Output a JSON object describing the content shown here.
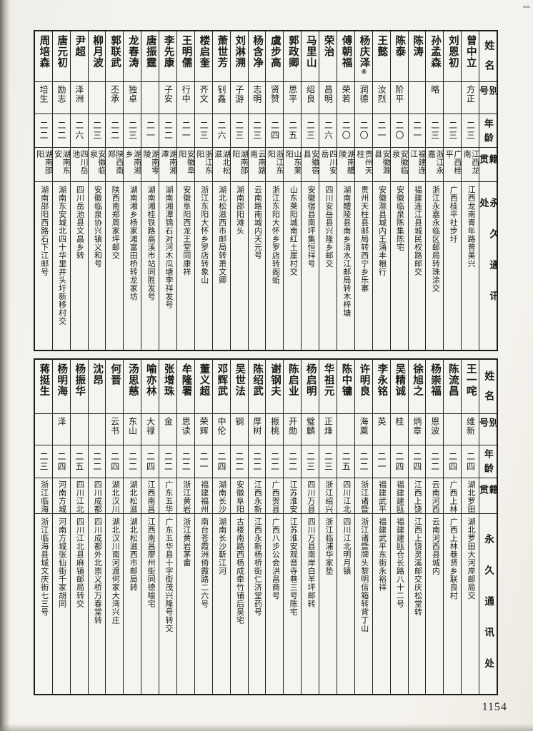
{
  "page": {
    "number": "1154"
  },
  "row_headers": {
    "name": "姓名",
    "alias": "别号",
    "age": "年龄",
    "native_place": "籍贯",
    "address": "永久通讯处"
  },
  "tables": [
    {
      "id": "top",
      "people": [
        {
          "name": "曾中立",
          "alias": "方正",
          "age": "二三",
          "native_place": "江西龙南",
          "address": "江西龙南青年路曾美兴"
        },
        {
          "name": "刘恩初",
          "alias": "",
          "age": "二三",
          "native_place": "广西桂平",
          "address": "广西桂平社步圩"
        },
        {
          "name": "孙孟森",
          "alias": "略",
          "age": "二三",
          "native_place": "浙江永嘉",
          "address": "浙江永嘉永临区邮局转珠涂交"
        },
        {
          "name": "陈涛",
          "alias": "",
          "age": "二一",
          "native_place": "福建连江",
          "address": "福建连江县城民权路邮交"
        },
        {
          "name": "陈泰",
          "alias": "阶平",
          "age": "二〇",
          "native_place": "安徽临泉",
          "address": "安徽临泉陈集陈宅"
        },
        {
          "name": "王懿",
          "alias": "汝烈",
          "age": "二一",
          "native_place": "安徽滁县",
          "address": "安徽滁县城内王涌丰粮行"
        },
        {
          "name": "杨庆泽",
          "note": "④",
          "alias": "润德",
          "age": "二〇",
          "native_place": "贵州天柱",
          "address": "贵州天柱县邮局转西宁乡乐寨"
        },
        {
          "name": "傅朝福",
          "alias": "荣若",
          "age": "二〇",
          "native_place": "湖南醴陵",
          "address": "湖南醴陵县南乡清水江邮局转木梓塘"
        },
        {
          "name": "荣治",
          "alias": "昌明",
          "age": "二六",
          "native_place": "四川安岳",
          "address": "四川安岳县兴隆乡邮交"
        },
        {
          "name": "马里山",
          "alias": "绍良",
          "age": "二三",
          "native_place": "安徽宿县",
          "address": "安徽宿县南坪集恒祥号"
        },
        {
          "name": "郭政卿",
          "alias": "思平",
          "age": "二五",
          "native_place": "山东莱阳",
          "address": "山东莱阳城南红土崖村交"
        },
        {
          "name": "虞步高",
          "alias": "贤赞",
          "age": "二四",
          "native_place": "浙江东阳",
          "address": "浙江东阳大怀乡罗店转阁蚯"
        },
        {
          "name": "杨含净",
          "alias": "志明",
          "age": "二三",
          "native_place": "云南路南",
          "address": "云南路南城内天元号"
        },
        {
          "name": "刘淋溯",
          "alias": "子游",
          "age": "二三",
          "native_place": "湖南邵阳",
          "address": "湖南邵阳滩头"
        },
        {
          "name": "萧世芳",
          "alias": "钊鑫",
          "age": "二六",
          "native_place": "湖北松滋",
          "address": "湖北松滋西市邮局转萧文卿"
        },
        {
          "name": "楼启奎",
          "alias": "齐文",
          "age": "二三",
          "native_place": "浙江东阳",
          "address": "浙江东阳大怀乡罗店转象山"
        },
        {
          "name": "王明儒",
          "alias": "行中",
          "age": "二一",
          "native_place": "安徽阜阳",
          "address": "安徽阜阳西龙王堂同康祥"
        },
        {
          "name": "李先康",
          "alias": "子安",
          "age": "二二",
          "native_place": "湖南湘潭",
          "address": "湖南湘潭锦石对河木瓜塘李祥发号"
        },
        {
          "name": "唐振霆",
          "alias": "",
          "age": "二一",
          "native_place": "湖南零陵",
          "address": "湖南湘桂铁路高溪市站同胜发号"
        },
        {
          "name": "龙春涛",
          "alias": "独卓",
          "age": "二三",
          "native_place": "湖南湘乡",
          "address": "湖南湘乡杨家滩富田桥转龙家坊"
        },
        {
          "name": "郭联武",
          "alias": "丕承",
          "age": "二二",
          "native_place": "陕西南郑",
          "address": "陕西南郑周家坪邮交"
        },
        {
          "name": "柳月波",
          "alias": "",
          "age": "二三",
          "native_place": "安徽临泉",
          "address": "安徽临泉协兴镇义和号"
        },
        {
          "name": "尹超",
          "alias": "泽洲",
          "age": "二六",
          "native_place": "四川岳池",
          "address": "四川岳池县文昌乡转"
        },
        {
          "name": "唐元初",
          "alias": "励志",
          "age": "二二",
          "native_place": "湖南东安",
          "address": "湖南东安城北四十华里井头圩新移村交"
        },
        {
          "name": "周培森",
          "alias": "培生",
          "age": "二二",
          "native_place": "湖南邵阳",
          "address": "湖南邵阳西路石下江邮号"
        }
      ]
    },
    {
      "id": "bottom",
      "people": [
        {
          "name": "王一咤",
          "alias": "维新",
          "age": "二四",
          "native_place": "湖北罗田",
          "address": "湖北罗田大河岸邮局交"
        },
        {
          "name": "陈流昌",
          "alias": "",
          "age": "二四",
          "native_place": "广西上林",
          "address": "广西上林巷贤乡联良村"
        },
        {
          "name": "杨崇福",
          "alias": "恩波",
          "age": "二二",
          "native_place": "云南河西",
          "address": "云南河西县城内"
        },
        {
          "name": "徐旭之",
          "alias": "炳章",
          "age": "二四",
          "native_place": "江西上饶",
          "address": "江西上饶灵溪邮交庆松堂转"
        },
        {
          "name": "吴精诚",
          "alias": "桂",
          "age": "二四",
          "native_place": "福建建瓯",
          "address": "福建建瓯仓长路八十二号"
        },
        {
          "name": "李永铭",
          "alias": "英",
          "age": "二一",
          "native_place": "福建武平",
          "address": "福建武平东街永裕祥"
        },
        {
          "name": "许明良",
          "alias": "海粟",
          "age": "二二",
          "native_place": "浙江诸暨",
          "address": "浙江诸暨牌头黎明信箱转背丁山"
        },
        {
          "name": "陈中镛",
          "alias": "",
          "age": "二五",
          "native_place": "四川江北",
          "address": "四川江北明月镇"
        },
        {
          "name": "华祖元",
          "alias": "正烽",
          "age": "二三",
          "native_place": "浙江绍兴",
          "address": "浙江临浦华家垫"
        },
        {
          "name": "杨启明",
          "alias": "璧麟",
          "age": "二三",
          "native_place": "四川万县",
          "address": "四川万县南岸白羊坪邮转"
        },
        {
          "name": "陈启业",
          "alias": "开勋",
          "age": "二二",
          "native_place": "江苏淮安",
          "address": "江苏淮安观音寺巷三号陈宅"
        },
        {
          "name": "谢钢夫",
          "alias": "振桃",
          "age": "二二",
          "native_place": "广西贺县",
          "address": "广西八步公会洪昌商号"
        },
        {
          "name": "陈绍武",
          "alias": "厚树",
          "age": "二二",
          "native_place": "江西永新",
          "address": "江西永新杨桥街仁济堂药号"
        },
        {
          "name": "吴世法",
          "alias": "钢",
          "age": "二二",
          "native_place": "安徽阜阳",
          "address": "古楼南路西杨成牵竹铺后吴宅"
        },
        {
          "name": "邓辉武",
          "alias": "中伦",
          "age": "二四",
          "native_place": "湖南长沙",
          "address": "湖南长沙靳江河"
        },
        {
          "name": "董义超",
          "alias": "荣辉",
          "age": "二一",
          "native_place": "福建福州",
          "address": "南台苍霞洲倚霞路二六号"
        },
        {
          "name": "牟隆署",
          "alias": "思读",
          "age": "二二",
          "native_place": "浙江黄岩",
          "address": "浙江黄岩茅畲"
        },
        {
          "name": "张增珠",
          "alias": "金",
          "age": "二二",
          "native_place": "广东五华",
          "address": "广东五华县十字街茂兴隆号转交"
        },
        {
          "name": "喻亦林",
          "alias": "大禄",
          "age": "二四",
          "native_place": "江西南昌",
          "address": "江西南昌廖州街同德喻宅"
        },
        {
          "name": "汤思慈",
          "alias": "东山",
          "age": "二二",
          "native_place": "湖北松滋",
          "address": "湖北松滋西市邮局转"
        },
        {
          "name": "何晋",
          "alias": "云书",
          "age": "二四",
          "native_place": "湖北汉川",
          "address": "湖北汉川南河渡何家大湾兴庄"
        },
        {
          "name": "沈昂",
          "alias": "",
          "age": "二二",
          "native_place": "四川成都",
          "address": "四川成都外北崇义桥万春堂转"
        },
        {
          "name": "杨振华",
          "alias": "",
          "age": "二五",
          "native_place": "四川江北",
          "address": "四川江北县麻镇邮局转交"
        },
        {
          "name": "杨明海",
          "alias": "泽",
          "age": "二四",
          "native_place": "河南方城",
          "address": "河南方城张仙街千家胡同"
        },
        {
          "name": "蒋挺生",
          "alias": "",
          "age": "二三",
          "native_place": "浙江临海",
          "address": "浙江临海县城文庆街七三号"
        }
      ]
    }
  ]
}
